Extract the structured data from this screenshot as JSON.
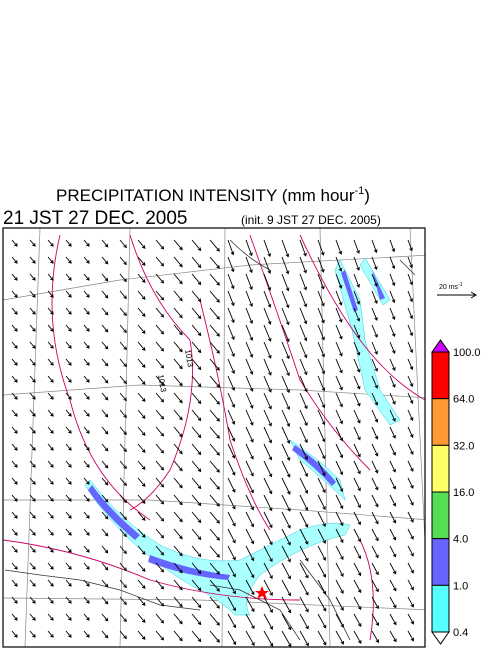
{
  "header": {
    "title": "PRECIPITATION INTENSITY (mm hour",
    "title_sup": "-1",
    "title_close": ")",
    "time": "21 JST 27 DEC. 2005",
    "init": "(init. 9 JST 27 DEC. 2005)"
  },
  "wind_scale": {
    "text": "20 ms",
    "sup": "-1"
  },
  "colorbar": {
    "labels": [
      "100.0",
      "64.0",
      "32.0",
      "16.0",
      "4.0",
      "1.0",
      "0.4"
    ],
    "colors": [
      "#cc00ff",
      "#ff0000",
      "#ff9933",
      "#ffff66",
      "#55dd55",
      "#6666ff",
      "#55ffff",
      "#ffffff"
    ]
  },
  "contours": [
    "1013",
    "1013"
  ]
}
